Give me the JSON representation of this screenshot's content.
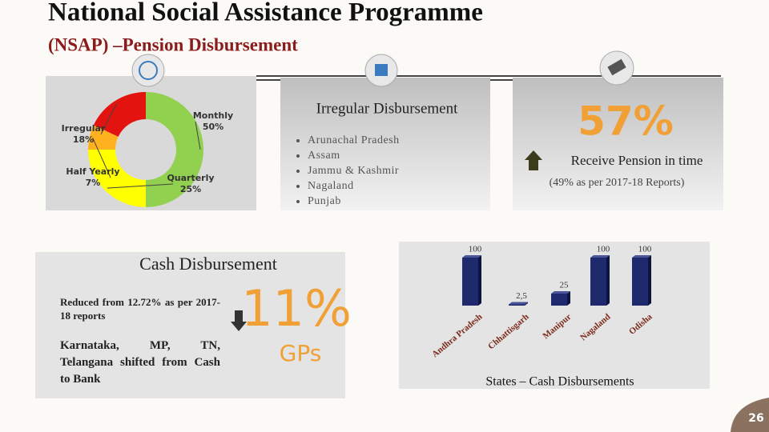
{
  "title": "National Social Assistance Programme",
  "subtitle": "(NSAP) –Pension Disbursement",
  "irregular": {
    "heading": "Irregular Disbursement",
    "states": [
      "Arunachal Pradesh",
      "Assam",
      "Jammu & Kashmir",
      "Nagaland",
      "Punjab"
    ]
  },
  "pension": {
    "figure": "57%",
    "caption": "Receive Pension in time",
    "note": "(49% as per 2017-18 Reports)"
  },
  "cash": {
    "heading": "Cash Disbursement",
    "reduced": "Reduced from 12.72% as per 2017-18 reports",
    "shifted": "Karnataka, MP, TN, Telangana shifted from Cash to Bank",
    "figure": "11%",
    "unit": "GPs"
  },
  "page_number": "26",
  "chart_data": [
    {
      "type": "donut",
      "categories": [
        "Monthly",
        "Quarterly",
        "Half Yearly",
        "Irregular"
      ],
      "values": [
        50,
        25,
        7,
        18
      ],
      "value_labels": [
        "50%",
        "25%",
        "7%",
        "18%"
      ],
      "colors": [
        "#92d050",
        "#ffff00",
        "#ffb11f",
        "#e3140f"
      ]
    },
    {
      "type": "bar",
      "title": "States – Cash Disbursements",
      "categories": [
        "Andhra Pradesh",
        "Chhattisgarh",
        "Manipur",
        "Nagaland",
        "Odisha"
      ],
      "values": [
        100,
        2.5,
        25,
        100,
        100
      ],
      "value_labels": [
        "100",
        "2,5",
        "25",
        "100",
        "100"
      ],
      "color": "#1f2a6e",
      "ylim": [
        0,
        100
      ]
    }
  ]
}
